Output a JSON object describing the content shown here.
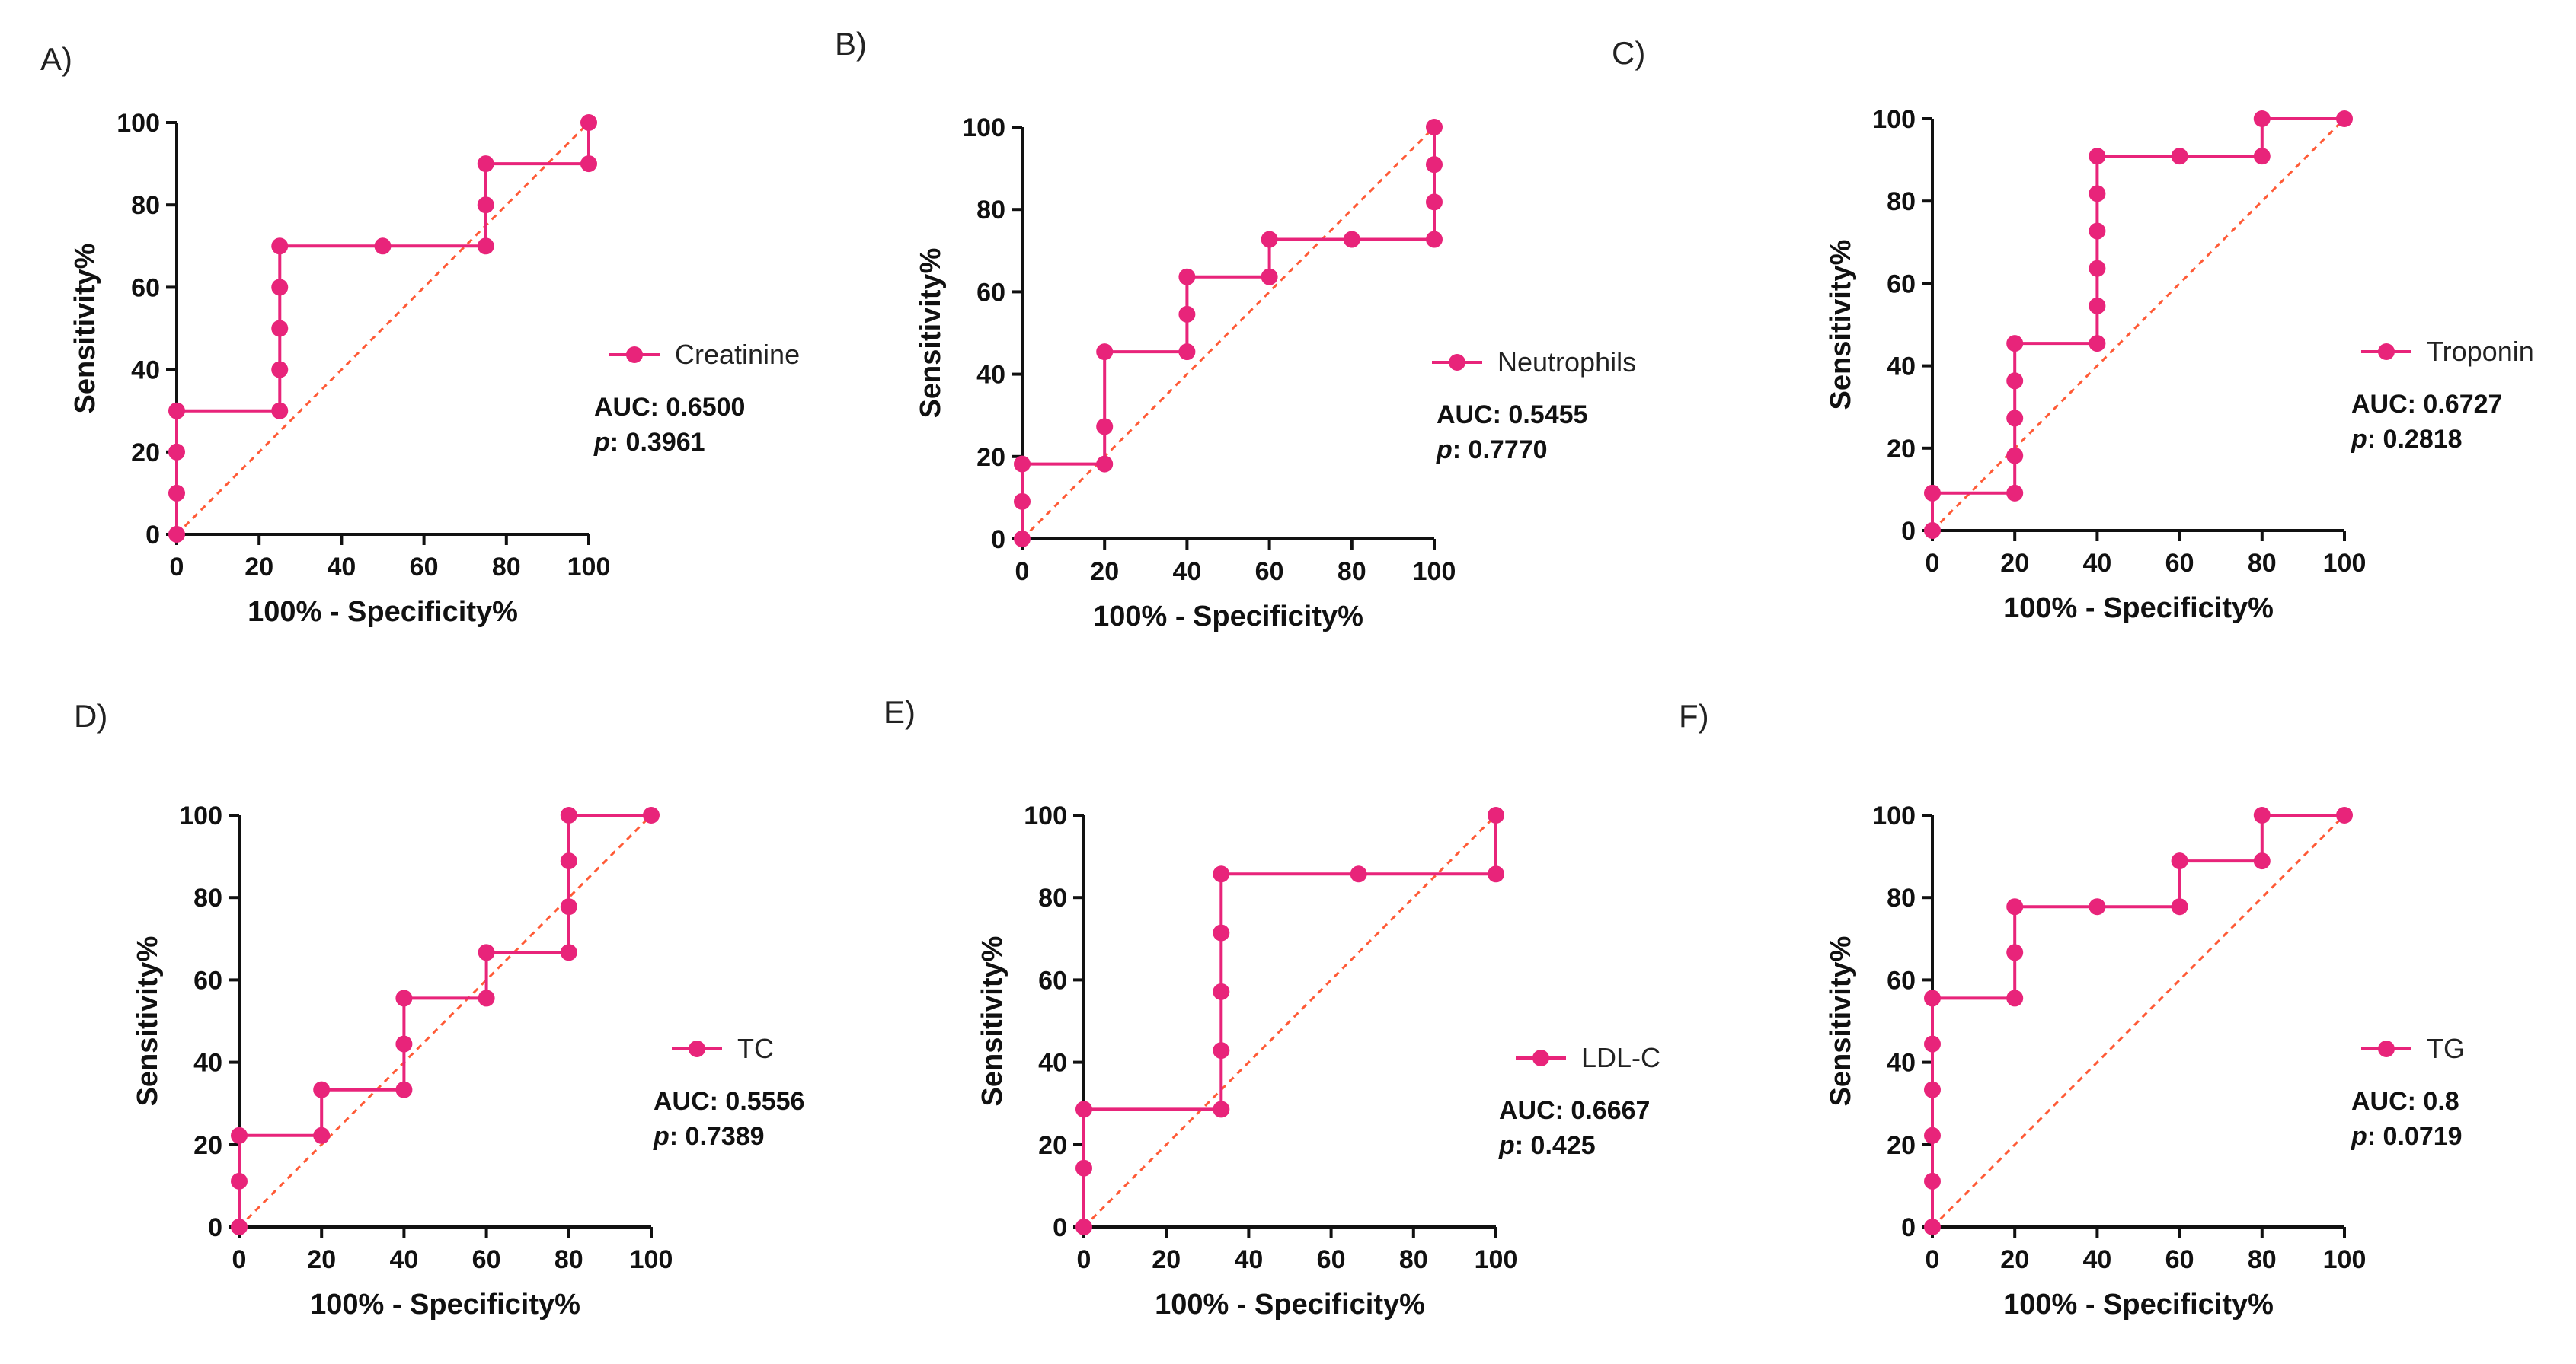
{
  "colors": {
    "roc": "#e8247a",
    "diagonal": "#ff5a36",
    "axis": "#111111"
  },
  "chart_data": [
    {
      "type": "line",
      "panel_label": "A)",
      "legend": "Creatinine",
      "auc_label": "AUC: 0.6500",
      "p_prefix": "p",
      "p_value": ": 0.3961",
      "xlabel": "100% - Specificity%",
      "ylabel": "Sensitivity%",
      "xlim": [
        0,
        100
      ],
      "ylim": [
        0,
        100
      ],
      "xticks": [
        "0",
        "20",
        "40",
        "60",
        "80",
        "100"
      ],
      "yticks": [
        "0",
        "20",
        "40",
        "60",
        "80",
        "100"
      ],
      "x": [
        0,
        0,
        0,
        0,
        25,
        25,
        25,
        25,
        25,
        50,
        75,
        75,
        75,
        100,
        100
      ],
      "y": [
        0,
        10,
        20,
        30,
        30,
        40,
        50,
        60,
        70,
        70,
        70,
        80,
        90,
        90,
        100
      ]
    },
    {
      "type": "line",
      "panel_label": "B)",
      "legend": "Neutrophils",
      "auc_label": "AUC: 0.5455",
      "p_prefix": "p",
      "p_value": ": 0.7770",
      "xlabel": "100% - Specificity%",
      "ylabel": "Sensitivity%",
      "xlim": [
        0,
        100
      ],
      "ylim": [
        0,
        100
      ],
      "xticks": [
        "0",
        "20",
        "40",
        "60",
        "80",
        "100"
      ],
      "yticks": [
        "0",
        "20",
        "40",
        "60",
        "80",
        "100"
      ],
      "x": [
        0,
        0,
        0,
        20,
        20,
        20,
        40,
        40,
        40,
        60,
        60,
        80,
        100,
        100,
        100,
        100
      ],
      "y": [
        0,
        9.09,
        18.18,
        18.18,
        27.27,
        45.45,
        45.45,
        54.55,
        63.64,
        63.64,
        72.73,
        72.73,
        72.73,
        81.82,
        90.91,
        100
      ]
    },
    {
      "type": "line",
      "panel_label": "C)",
      "legend": "Troponin",
      "auc_label": "AUC: 0.6727",
      "p_prefix": "p",
      "p_value": ": 0.2818",
      "xlabel": "100% - Specificity%",
      "ylabel": "Sensitivity%",
      "xlim": [
        0,
        100
      ],
      "ylim": [
        0,
        100
      ],
      "xticks": [
        "0",
        "20",
        "40",
        "60",
        "80",
        "100"
      ],
      "yticks": [
        "0",
        "20",
        "40",
        "60",
        "80",
        "100"
      ],
      "x": [
        0,
        0,
        20,
        20,
        20,
        20,
        20,
        40,
        40,
        40,
        40,
        40,
        40,
        60,
        80,
        80,
        100
      ],
      "y": [
        0,
        9.09,
        9.09,
        18.18,
        27.27,
        36.36,
        45.45,
        45.45,
        54.55,
        63.64,
        72.73,
        81.82,
        90.91,
        90.91,
        90.91,
        100,
        100
      ]
    },
    {
      "type": "line",
      "panel_label": "D)",
      "legend": "TC",
      "auc_label": "AUC: 0.5556",
      "p_prefix": "p",
      "p_value": ": 0.7389",
      "xlabel": "100% - Specificity%",
      "ylabel": "Sensitivity%",
      "xlim": [
        0,
        100
      ],
      "ylim": [
        0,
        100
      ],
      "xticks": [
        "0",
        "20",
        "40",
        "60",
        "80",
        "100"
      ],
      "yticks": [
        "0",
        "20",
        "40",
        "60",
        "80",
        "100"
      ],
      "x": [
        0,
        0,
        0,
        20,
        20,
        40,
        40,
        40,
        60,
        60,
        80,
        80,
        80,
        80,
        100
      ],
      "y": [
        0,
        11.11,
        22.22,
        22.22,
        33.33,
        33.33,
        44.44,
        55.56,
        55.56,
        66.67,
        66.67,
        77.78,
        88.89,
        100,
        100
      ]
    },
    {
      "type": "line",
      "panel_label": "E)",
      "legend": "LDL-C",
      "auc_label": "AUC: 0.6667",
      "p_prefix": "p",
      "p_value": ": 0.425",
      "xlabel": "100% - Specificity%",
      "ylabel": "Sensitivity%",
      "xlim": [
        0,
        100
      ],
      "ylim": [
        0,
        100
      ],
      "xticks": [
        "0",
        "20",
        "40",
        "60",
        "80",
        "100"
      ],
      "yticks": [
        "0",
        "20",
        "40",
        "60",
        "80",
        "100"
      ],
      "x": [
        0,
        0,
        0,
        33.33,
        33.33,
        33.33,
        33.33,
        33.33,
        66.67,
        100,
        100
      ],
      "y": [
        0,
        14.29,
        28.57,
        28.57,
        42.86,
        57.14,
        71.43,
        85.71,
        85.71,
        85.71,
        100
      ]
    },
    {
      "type": "line",
      "panel_label": "F)",
      "legend": "TG",
      "auc_label": "AUC: 0.8",
      "p_prefix": "p",
      "p_value": ": 0.0719",
      "xlabel": "100% - Specificity%",
      "ylabel": "Sensitivity%",
      "xlim": [
        0,
        100
      ],
      "ylim": [
        0,
        100
      ],
      "xticks": [
        "0",
        "20",
        "40",
        "60",
        "80",
        "100"
      ],
      "yticks": [
        "0",
        "20",
        "40",
        "60",
        "80",
        "100"
      ],
      "x": [
        0,
        0,
        0,
        0,
        0,
        0,
        20,
        20,
        20,
        40,
        60,
        60,
        80,
        80,
        100
      ],
      "y": [
        0,
        11.11,
        22.22,
        33.33,
        44.44,
        55.56,
        55.56,
        66.67,
        77.78,
        77.78,
        77.78,
        88.89,
        88.89,
        100,
        100
      ]
    }
  ]
}
